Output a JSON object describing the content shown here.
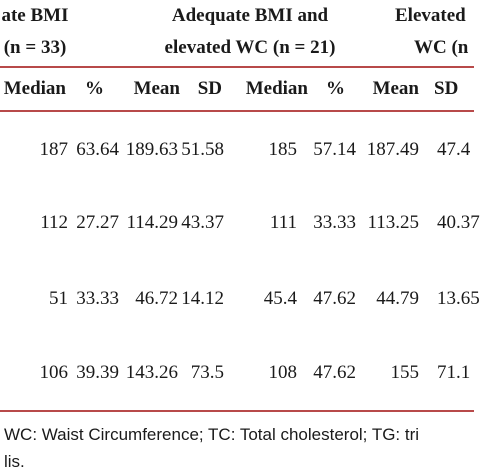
{
  "groups": [
    {
      "line1": "ate BMI",
      "line2": "(n = 33)"
    },
    {
      "line1": "Adequate BMI and",
      "line2": "elevated WC (n = 21)"
    },
    {
      "line1": "Elevated",
      "line2": "WC (n"
    }
  ],
  "columns": [
    "Median",
    "%",
    "Mean",
    "SD",
    "Median",
    "%",
    "Mean",
    "SD"
  ],
  "rows": [
    [
      "187",
      "63.64",
      "189.63",
      "51.58",
      "185",
      "57.14",
      "187.49",
      "47.4"
    ],
    [
      "112",
      "27.27",
      "114.29",
      "43.37",
      "111",
      "33.33",
      "113.25",
      "40.37"
    ],
    [
      "51",
      "33.33",
      "46.72",
      "14.12",
      "45.4",
      "47.62",
      "44.79",
      "13.65"
    ],
    [
      "106",
      "39.39",
      "143.26",
      "73.5",
      "108",
      "47.62",
      "155",
      "71.1"
    ]
  ],
  "footnote": {
    "line1": "WC: Waist Circumference; TC: Total cholesterol; TG: tri",
    "line2": "lis."
  },
  "colors": {
    "rule": "#b84a4a",
    "text": "#1a1a1a"
  }
}
